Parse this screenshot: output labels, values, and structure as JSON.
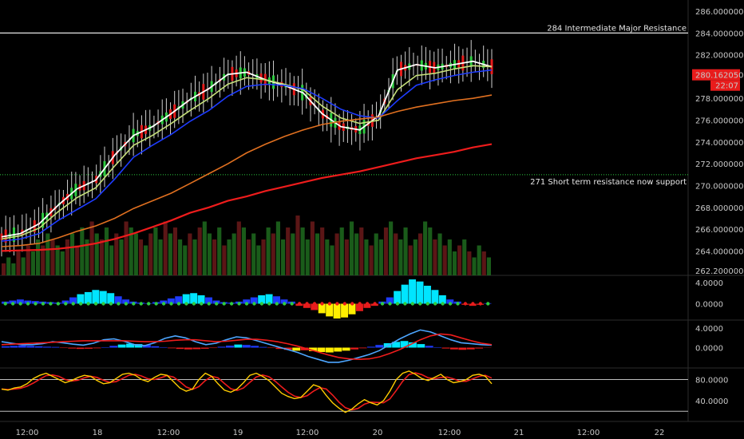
{
  "chart_data": [
    {
      "type": "candlestick",
      "panel": "price",
      "y_ticks": [
        "286.00000000",
        "284.00000000",
        "282.00000000",
        "280.16205000",
        "278.00000000",
        "276.00000000",
        "274.00000000",
        "272.00000000",
        "270.00000000",
        "268.00000000",
        "266.00000000",
        "264.00000000",
        "262.20000000"
      ],
      "ylim": [
        262.2,
        286.0
      ],
      "last_price": "280.16205000",
      "countdown": "22:07",
      "annotations": [
        {
          "text": "284 Intermediate Major Resistance",
          "y": 284.0
        },
        {
          "text": "271 Short term resistance now support",
          "y": 271.0
        }
      ],
      "moving_averages": [
        {
          "color": "#ffffff",
          "y": [
            265.3,
            265.6,
            266.5,
            268.2,
            269.7,
            270.5,
            272.8,
            274.6,
            275.4,
            276.6,
            277.9,
            278.9,
            280.2,
            280.4,
            279.7,
            279.2,
            278.5,
            276.6,
            275.4,
            275.1,
            276.4,
            280.6,
            281.1,
            280.8,
            281.1,
            281.4,
            280.9
          ]
        },
        {
          "color": "#c6e07a",
          "y": [
            265.1,
            265.4,
            266.1,
            267.6,
            268.9,
            269.8,
            271.8,
            273.7,
            274.6,
            275.7,
            276.9,
            278.0,
            279.3,
            279.9,
            279.7,
            279.3,
            278.8,
            277.3,
            276.2,
            275.7,
            276.0,
            278.8,
            280.1,
            280.3,
            280.7,
            281.0,
            280.9
          ]
        },
        {
          "color": "#1e3cff",
          "y": [
            264.9,
            265.1,
            265.6,
            266.8,
            267.8,
            268.8,
            270.6,
            272.6,
            273.7,
            274.7,
            275.9,
            276.9,
            278.2,
            279.1,
            279.3,
            279.2,
            278.9,
            278.0,
            277.0,
            276.4,
            276.2,
            277.8,
            279.2,
            279.7,
            280.1,
            280.4,
            280.6
          ]
        },
        {
          "color": "#e07020",
          "y": [
            264.4,
            264.5,
            264.7,
            265.2,
            265.8,
            266.3,
            267.0,
            267.9,
            268.6,
            269.3,
            270.2,
            271.1,
            272.0,
            273.0,
            273.8,
            274.5,
            275.1,
            275.6,
            275.9,
            276.1,
            276.3,
            276.8,
            277.2,
            277.5,
            277.8,
            278.0,
            278.3
          ]
        },
        {
          "color": "#ee1c1c",
          "y": [
            264.0,
            264.05,
            264.1,
            264.2,
            264.4,
            264.7,
            265.1,
            265.6,
            266.2,
            266.8,
            267.5,
            268.0,
            268.6,
            269.0,
            269.5,
            269.9,
            270.3,
            270.7,
            271.0,
            271.3,
            271.7,
            272.1,
            272.5,
            272.8,
            273.1,
            273.5,
            273.8
          ]
        }
      ],
      "volume": [
        2,
        3,
        2,
        4,
        3,
        5,
        4,
        6,
        5,
        7,
        6,
        5,
        4,
        6,
        7,
        5,
        8,
        6,
        9,
        7,
        6,
        8,
        5,
        7,
        6,
        9,
        8,
        7,
        6,
        5,
        7,
        8,
        6,
        9,
        7,
        8,
        6,
        5,
        7,
        6,
        8,
        9,
        7,
        6,
        8,
        5,
        6,
        7,
        9,
        8,
        6,
        7,
        5,
        6,
        8,
        7,
        9,
        6,
        8,
        7,
        10,
        8,
        6,
        9,
        7,
        8,
        6,
        5,
        7,
        8,
        6,
        9,
        7,
        8,
        6,
        5,
        7,
        6,
        8,
        9,
        7,
        6,
        8,
        5,
        6,
        7,
        9,
        8,
        6,
        7,
        5,
        6,
        4,
        5,
        6,
        4,
        3,
        5,
        4,
        3
      ]
    },
    {
      "type": "histogram",
      "panel": "oscillator-1",
      "y_ticks": [
        "4.0000",
        "0.0000"
      ],
      "ylim": [
        -3.5,
        5.0
      ],
      "values": [
        0.4,
        0.6,
        0.8,
        0.6,
        0.5,
        0.4,
        0.3,
        0.2,
        0.6,
        1.2,
        1.8,
        2.2,
        2.6,
        2.4,
        2.0,
        1.4,
        0.8,
        0.4,
        0.2,
        0.1,
        0.3,
        0.6,
        1.0,
        1.4,
        1.8,
        2.0,
        1.6,
        1.2,
        0.6,
        0.3,
        0.2,
        0.4,
        0.8,
        1.2,
        1.6,
        1.8,
        1.4,
        0.8,
        0.4,
        -0.4,
        -0.8,
        -1.2,
        -1.8,
        -2.4,
        -2.8,
        -2.6,
        -2.0,
        -1.4,
        -0.8,
        -0.4,
        0.4,
        1.2,
        2.4,
        3.6,
        4.6,
        4.2,
        3.4,
        2.6,
        1.6,
        0.8,
        0.4,
        -0.2,
        -0.4,
        -0.2,
        0.1
      ]
    },
    {
      "type": "macd",
      "panel": "oscillator-2",
      "y_ticks": [
        "4.0000",
        "0.0000"
      ],
      "ylim": [
        -3.8,
        4.8
      ],
      "histogram": [
        0.6,
        0.8,
        1.0,
        0.8,
        0.6,
        0.4,
        0.3,
        -0.2,
        -0.4,
        -0.6,
        -0.5,
        -0.3,
        0.2,
        0.8,
        1.4,
        1.8,
        1.6,
        1.2,
        0.6,
        0.2,
        -0.3,
        -0.6,
        -0.8,
        -0.7,
        -0.5,
        -0.2,
        0.4,
        0.9,
        1.4,
        1.2,
        0.8,
        0.3,
        -0.2,
        -0.6,
        -1.0,
        -1.4,
        -1.2,
        -1.6,
        -2.0,
        -2.2,
        -1.8,
        -1.4,
        -0.8,
        -0.3,
        0.4,
        1.2,
        2.0,
        2.6,
        3.0,
        2.4,
        1.6,
        0.8,
        0.2,
        -0.4,
        -0.8,
        -1.0,
        -0.8,
        -0.4,
        -0.1
      ],
      "macd_line": [
        1.2,
        0.9,
        0.6,
        0.6,
        0.8,
        1.2,
        1.0,
        0.7,
        0.5,
        0.9,
        1.6,
        1.8,
        1.3,
        0.6,
        0.4,
        1.0,
        1.9,
        2.4,
        2.0,
        1.2,
        0.6,
        0.9,
        1.6,
        2.2,
        2.0,
        1.4,
        0.8,
        0.2,
        -0.4,
        -1.0,
        -1.8,
        -2.4,
        -3.0,
        -3.0,
        -2.6,
        -2.0,
        -1.4,
        -0.6,
        0.6,
        1.8,
        2.8,
        3.6,
        3.2,
        2.4,
        1.6,
        1.0,
        0.8,
        0.6,
        0.5
      ],
      "signal_line": [
        0.6,
        0.7,
        0.8,
        0.9,
        1.0,
        1.1,
        1.2,
        1.3,
        1.4,
        1.4,
        1.4,
        1.4,
        1.4,
        1.3,
        1.2,
        1.2,
        1.3,
        1.5,
        1.6,
        1.6,
        1.4,
        1.2,
        1.3,
        1.5,
        1.7,
        1.7,
        1.5,
        1.2,
        0.8,
        0.3,
        -0.3,
        -0.9,
        -1.5,
        -2.0,
        -2.3,
        -2.4,
        -2.3,
        -1.9,
        -1.2,
        -0.4,
        0.6,
        1.6,
        2.4,
        2.8,
        2.6,
        2.0,
        1.4,
        0.9,
        0.6
      ]
    },
    {
      "type": "line",
      "panel": "stochastic",
      "y_ticks": [
        "80.0000",
        "40.0000"
      ],
      "ylim": [
        10,
        105
      ],
      "k": [
        62,
        60,
        64,
        66,
        72,
        82,
        88,
        92,
        86,
        80,
        74,
        78,
        84,
        88,
        86,
        78,
        72,
        74,
        82,
        90,
        92,
        88,
        80,
        76,
        84,
        90,
        88,
        76,
        64,
        58,
        62,
        80,
        92,
        86,
        72,
        60,
        56,
        62,
        74,
        88,
        92,
        86,
        78,
        66,
        54,
        48,
        44,
        46,
        58,
        70,
        66,
        50,
        36,
        26,
        18,
        24,
        34,
        42,
        36,
        32,
        40,
        58,
        80,
        92,
        96,
        90,
        82,
        78,
        84,
        90,
        80,
        74,
        76,
        80,
        88,
        90,
        86,
        72
      ]
    }
  ],
  "x_axis": {
    "ticks": [
      "12:00",
      "18",
      "12:00",
      "19",
      "12:00",
      "20",
      "12:00",
      "21",
      "12:00",
      "22"
    ]
  }
}
